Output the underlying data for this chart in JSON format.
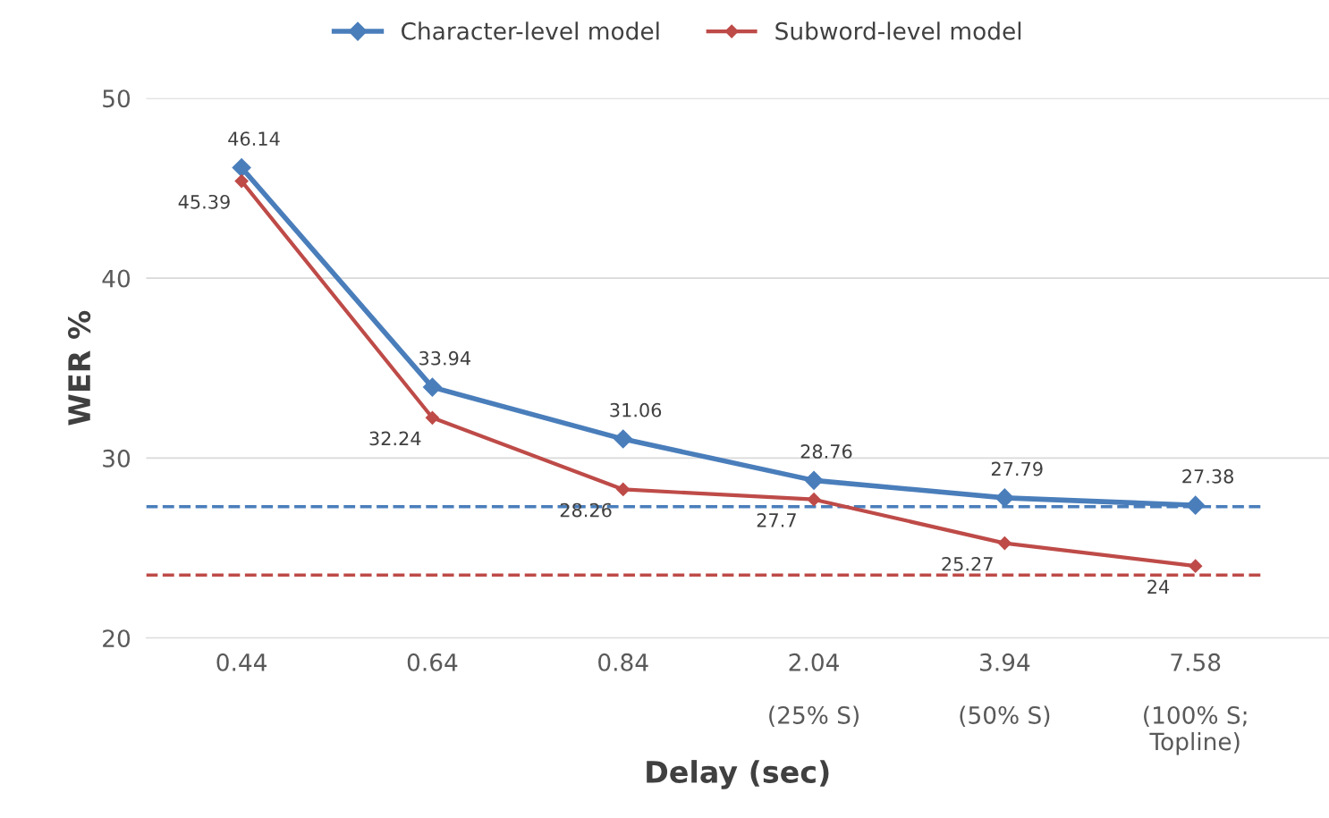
{
  "chart_data": {
    "type": "line",
    "xlabel": "Delay (sec)",
    "ylabel": "WER %",
    "categories": [
      "0.44",
      "0.64",
      "0.84",
      "2.04\n\n(25% S)",
      "3.94\n\n(50% S)",
      "7.58\n\n(100% S;\nTopline)"
    ],
    "series": [
      {
        "name": "Character-level model",
        "color": "#4a7ebb",
        "values": [
          46.14,
          33.94,
          31.06,
          28.76,
          27.79,
          27.38
        ],
        "value_labels": [
          "46.14",
          "33.94",
          "31.06",
          "28.76",
          "27.79",
          "27.38"
        ]
      },
      {
        "name": "Subword-level model",
        "color": "#be4b48",
        "values": [
          45.39,
          32.24,
          28.26,
          27.7,
          25.27,
          24
        ],
        "value_labels": [
          "45.39",
          "32.24",
          "28.26",
          "27.7",
          "25.27",
          "24"
        ]
      }
    ],
    "ref_lines": [
      {
        "axis": "y",
        "value": 27.3,
        "color": "#4a7ebb",
        "line_style": "dashed"
      },
      {
        "axis": "y",
        "value": 23.5,
        "color": "#be4b48",
        "line_style": "dashed"
      }
    ],
    "ylim": [
      20,
      50
    ],
    "yticks": [
      20,
      30,
      40,
      50
    ],
    "grid": "y",
    "legend": "top",
    "marker": "diamond",
    "line_style": "solid"
  }
}
